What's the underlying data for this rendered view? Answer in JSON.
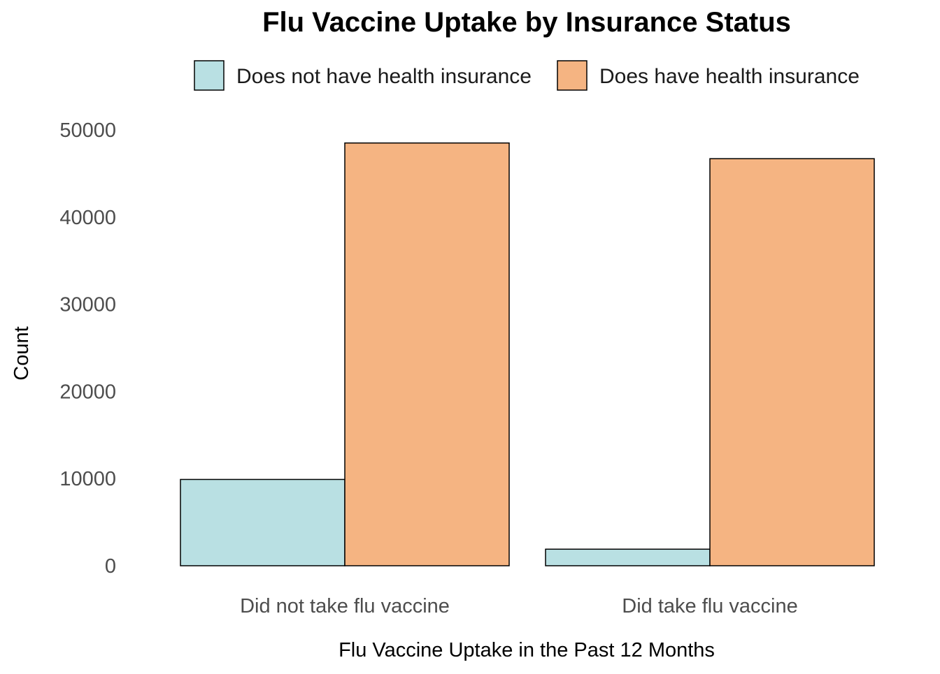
{
  "chart_data": {
    "type": "bar",
    "title": "Flu Vaccine Uptake by Insurance Status",
    "xlabel": "Flu Vaccine Uptake in the Past 12 Months",
    "ylabel": "Count",
    "categories": [
      "Did not take flu vaccine",
      "Did take flu vaccine"
    ],
    "series": [
      {
        "name": "Does not have health insurance",
        "color": "#b9e0e3",
        "values": [
          9900,
          1900
        ]
      },
      {
        "name": "Does have health insurance",
        "color": "#f5b482",
        "values": [
          48500,
          46700
        ]
      }
    ],
    "ylim": [
      0,
      50000
    ],
    "yticks": [
      "0",
      "10000",
      "20000",
      "30000",
      "40000",
      "50000"
    ],
    "legend_position": "top",
    "grid": false
  }
}
